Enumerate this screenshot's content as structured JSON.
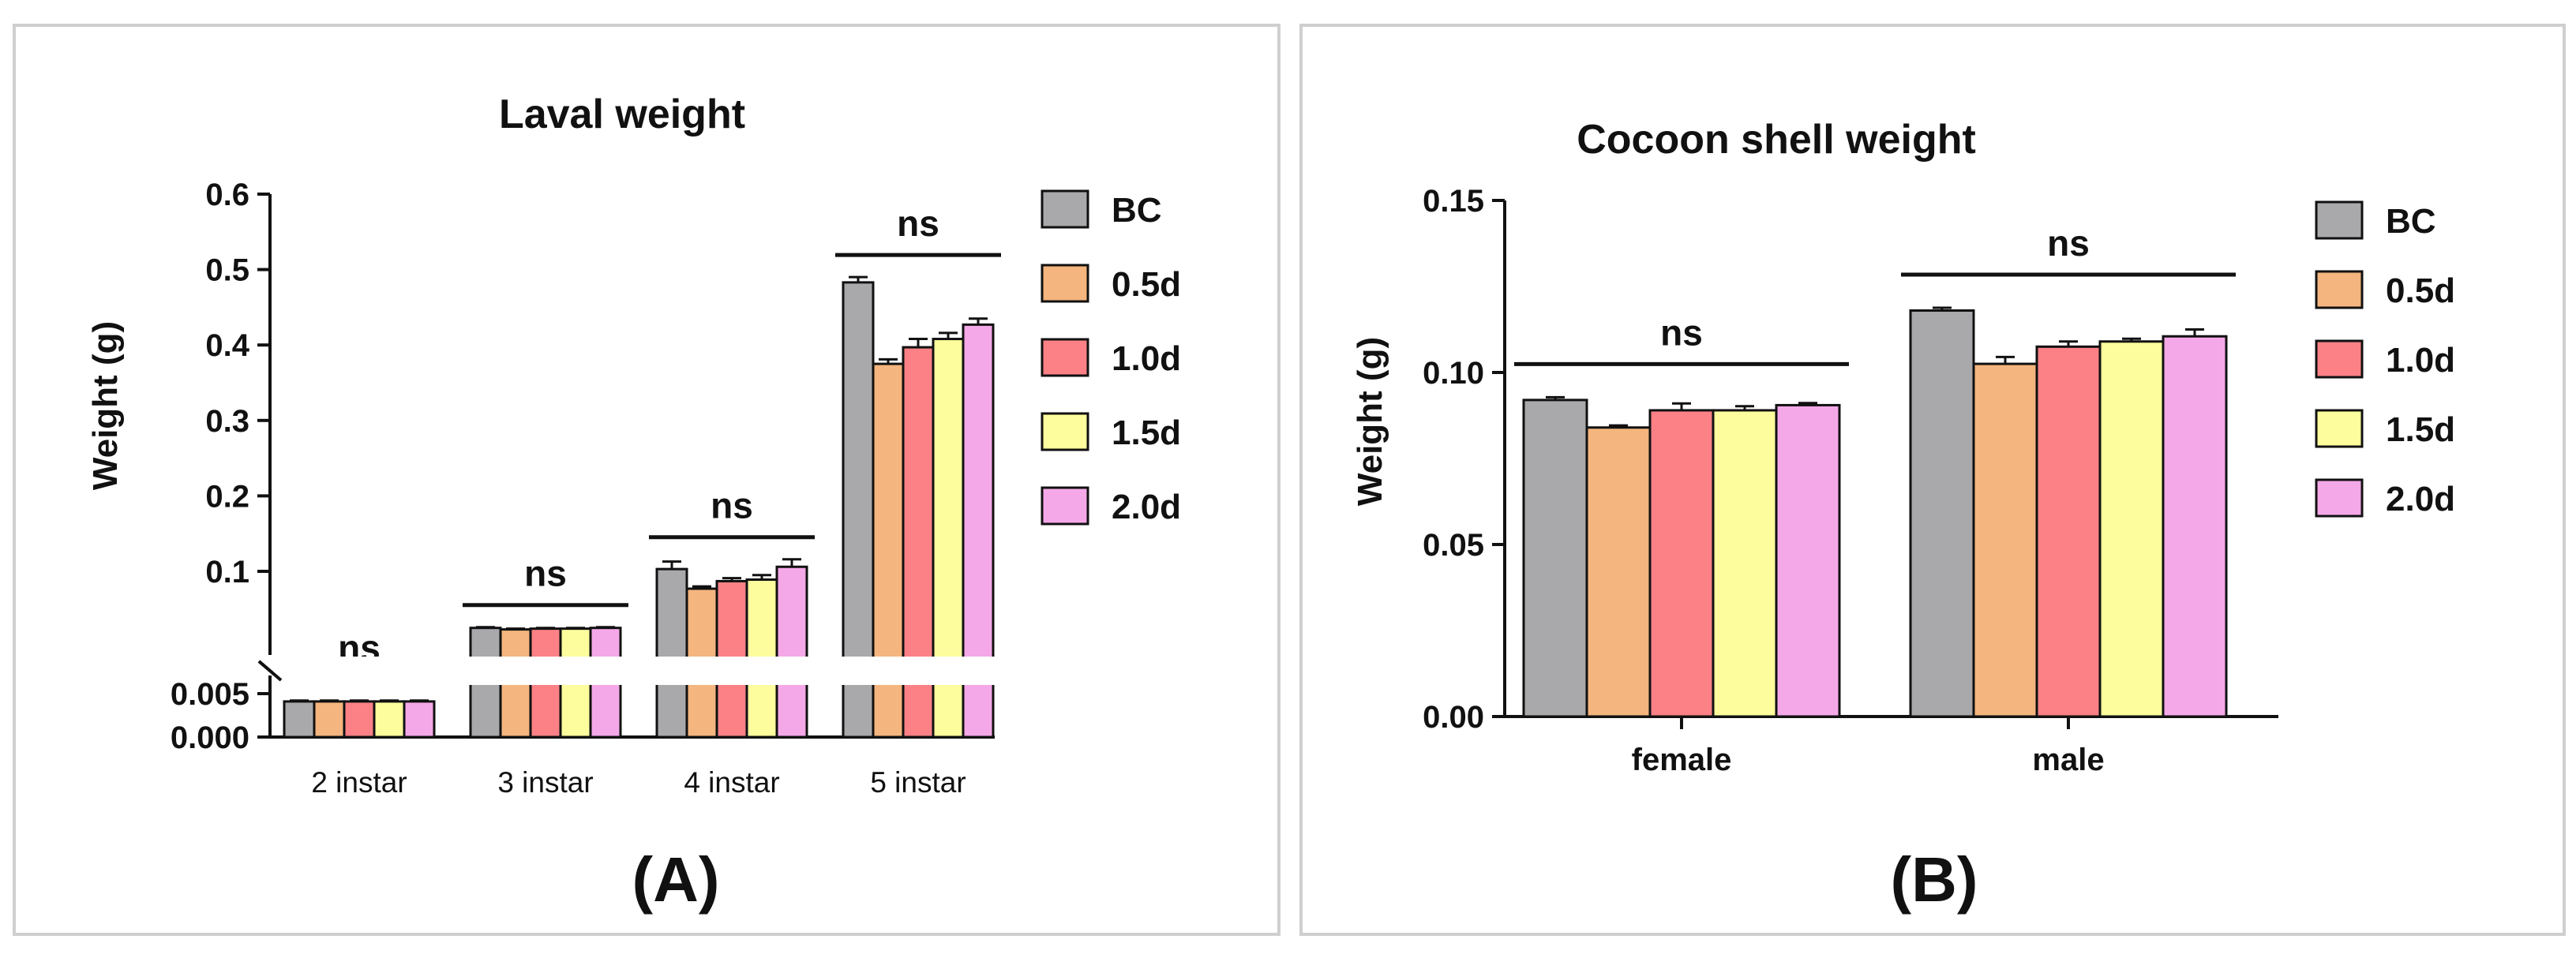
{
  "colors": {
    "BC": "#a9a8ab",
    "0.5d": "#f4b57e",
    "1.0d": "#fb8186",
    "1.5d": "#fdfd9d",
    "2.0d": "#f5a8e8"
  },
  "chart_data": [
    {
      "type": "bar",
      "panel_label": "(A)",
      "title": "Laval weight",
      "xlabel": "",
      "ylabel": "Weight (g)",
      "broken_axis": true,
      "y_ticks_lower": [
        "0.000",
        "0.005"
      ],
      "y_ticks_upper": [
        "0.1",
        "0.2",
        "0.3",
        "0.4",
        "0.5",
        "0.6"
      ],
      "ylim_lower": [
        0,
        0.005
      ],
      "ylim_upper": [
        0.1,
        0.6
      ],
      "categories": [
        "2 instar",
        "3 instar",
        "4 instar",
        "5 instar"
      ],
      "series": [
        {
          "name": "BC",
          "values": [
            0.0041,
            0.025,
            0.103,
            0.483
          ],
          "errors": [
            0.0001,
            0.001,
            0.01,
            0.007
          ]
        },
        {
          "name": "0.5d",
          "values": [
            0.0041,
            0.023,
            0.077,
            0.375
          ],
          "errors": [
            0.0001,
            0.001,
            0.003,
            0.006
          ]
        },
        {
          "name": "1.0d",
          "values": [
            0.0041,
            0.024,
            0.087,
            0.397
          ],
          "errors": [
            0.0001,
            0.001,
            0.004,
            0.011
          ]
        },
        {
          "name": "1.5d",
          "values": [
            0.0041,
            0.024,
            0.089,
            0.408
          ],
          "errors": [
            0.0001,
            0.001,
            0.006,
            0.008
          ]
        },
        {
          "name": "2.0d",
          "values": [
            0.0041,
            0.025,
            0.106,
            0.427
          ],
          "errors": [
            0.0001,
            0.001,
            0.01,
            0.008
          ]
        }
      ],
      "significance": [
        "ns",
        "ns",
        "ns",
        "ns"
      ],
      "legend_position": "right"
    },
    {
      "type": "bar",
      "panel_label": "(B)",
      "title": "Cocoon shell weight",
      "xlabel": "",
      "ylabel": "Weight (g)",
      "y_ticks": [
        "0.00",
        "0.05",
        "0.10",
        "0.15"
      ],
      "ylim": [
        0,
        0.15
      ],
      "categories": [
        "female",
        "male"
      ],
      "series": [
        {
          "name": "BC",
          "values": [
            0.092,
            0.118
          ],
          "errors": [
            0.0008,
            0.0008
          ]
        },
        {
          "name": "0.5d",
          "values": [
            0.084,
            0.1025
          ],
          "errors": [
            0.0006,
            0.002
          ]
        },
        {
          "name": "1.0d",
          "values": [
            0.089,
            0.1075
          ],
          "errors": [
            0.002,
            0.0015
          ]
        },
        {
          "name": "1.5d",
          "values": [
            0.089,
            0.109
          ],
          "errors": [
            0.0012,
            0.0008
          ]
        },
        {
          "name": "2.0d",
          "values": [
            0.0905,
            0.1105
          ],
          "errors": [
            0.0006,
            0.002
          ]
        }
      ],
      "significance": [
        "ns",
        "ns"
      ],
      "legend_position": "right"
    }
  ]
}
